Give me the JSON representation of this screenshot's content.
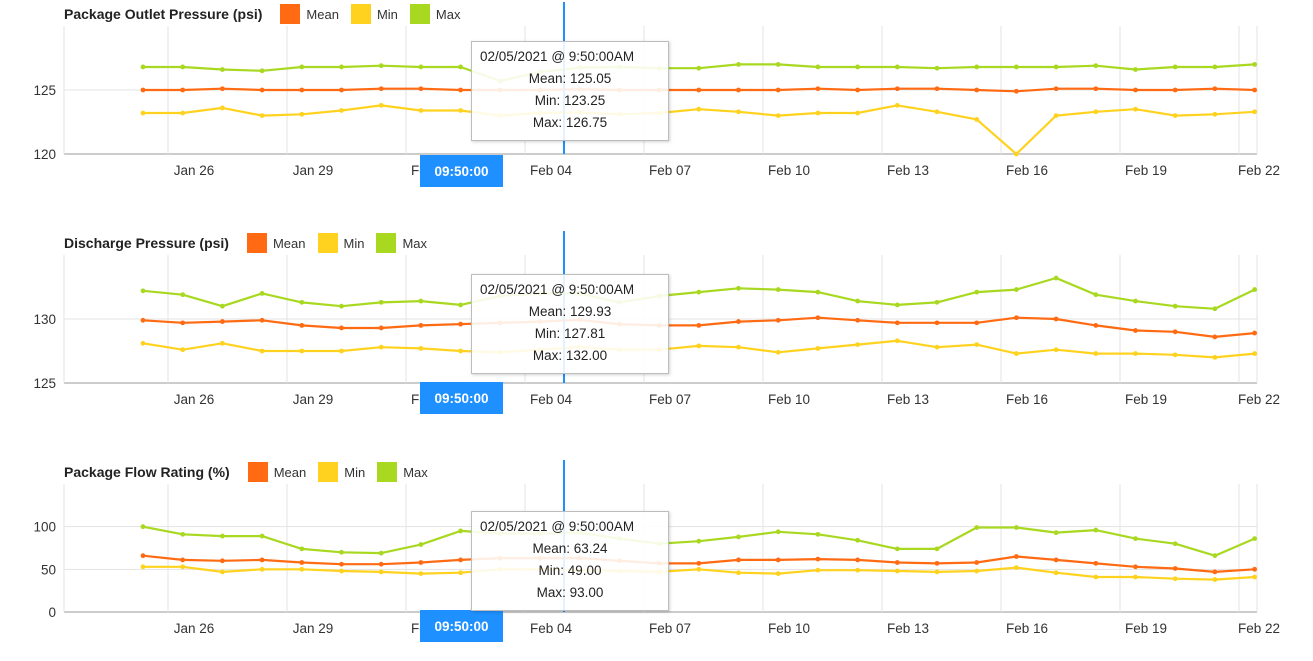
{
  "colors": {
    "mean": "#ff6a13",
    "min": "#ffd21f",
    "max": "#a8d820",
    "cursor": "#1e90ff",
    "grid": "#e3e3e3",
    "axis": "#9a9a9a"
  },
  "legend": {
    "mean": "Mean",
    "min": "Min",
    "max": "Max"
  },
  "x_ticks": [
    "Jan 26",
    "Jan 29",
    "Feb 01",
    "Feb 04",
    "Feb 07",
    "Feb 10",
    "Feb 13",
    "Feb 16",
    "Feb 19",
    "Feb 22"
  ],
  "cursor_time": "09:50:00",
  "chart_data": [
    {
      "type": "line",
      "title": "Package Outlet Pressure (psi)",
      "yticks": [
        "125",
        "120"
      ],
      "ylim": [
        120,
        130
      ],
      "x": [
        "Jan 24",
        "Jan 25",
        "Jan 26",
        "Jan 27",
        "Jan 28",
        "Jan 29",
        "Jan 30",
        "Jan 31",
        "Feb 01",
        "Feb 02",
        "Feb 03",
        "Feb 04",
        "Feb 05",
        "Feb 06",
        "Feb 07",
        "Feb 08",
        "Feb 09",
        "Feb 10",
        "Feb 11",
        "Feb 12",
        "Feb 13",
        "Feb 14",
        "Feb 15",
        "Feb 16",
        "Feb 17",
        "Feb 18",
        "Feb 19",
        "Feb 20",
        "Feb 21"
      ],
      "series": [
        {
          "name": "Mean",
          "values": [
            125.0,
            125.0,
            125.1,
            125.0,
            125.0,
            125.0,
            125.1,
            125.1,
            125.0,
            125.0,
            125.0,
            125.05,
            125.0,
            125.0,
            125.0,
            125.0,
            125.0,
            125.1,
            125.0,
            125.1,
            125.1,
            125.0,
            124.9,
            125.1,
            125.1,
            125.0,
            125.0,
            125.1,
            125.0
          ]
        },
        {
          "name": "Min",
          "values": [
            123.2,
            123.2,
            123.6,
            123.0,
            123.1,
            123.4,
            123.8,
            123.4,
            123.4,
            123.0,
            123.2,
            123.25,
            123.1,
            123.2,
            123.5,
            123.3,
            123.0,
            123.2,
            123.2,
            123.8,
            123.3,
            122.7,
            120.0,
            123.0,
            123.3,
            123.5,
            123.0,
            123.1,
            123.3
          ]
        },
        {
          "name": "Max",
          "values": [
            126.8,
            126.8,
            126.6,
            126.5,
            126.8,
            126.8,
            126.9,
            126.8,
            126.8,
            125.7,
            126.4,
            126.75,
            126.8,
            126.7,
            126.7,
            127.0,
            127.0,
            126.8,
            126.8,
            126.8,
            126.7,
            126.8,
            126.8,
            126.8,
            126.9,
            126.6,
            126.8,
            126.8,
            127.0
          ]
        }
      ],
      "tooltip": {
        "date": "02/05/2021 @ 9:50:00AM",
        "mean": "Mean: 125.05",
        "min": "Min: 123.25",
        "max": "Max: 126.75"
      }
    },
    {
      "type": "line",
      "title": "Discharge Pressure (psi)",
      "yticks": [
        "130",
        "125"
      ],
      "ylim": [
        125,
        135
      ],
      "x": [
        "Jan 24",
        "Jan 25",
        "Jan 26",
        "Jan 27",
        "Jan 28",
        "Jan 29",
        "Jan 30",
        "Jan 31",
        "Feb 01",
        "Feb 02",
        "Feb 03",
        "Feb 04",
        "Feb 05",
        "Feb 06",
        "Feb 07",
        "Feb 08",
        "Feb 09",
        "Feb 10",
        "Feb 11",
        "Feb 12",
        "Feb 13",
        "Feb 14",
        "Feb 15",
        "Feb 16",
        "Feb 17",
        "Feb 18",
        "Feb 19",
        "Feb 20",
        "Feb 21"
      ],
      "series": [
        {
          "name": "Mean",
          "values": [
            129.9,
            129.7,
            129.8,
            129.9,
            129.5,
            129.3,
            129.3,
            129.5,
            129.6,
            129.7,
            129.8,
            129.93,
            129.6,
            129.5,
            129.5,
            129.8,
            129.9,
            130.1,
            129.9,
            129.7,
            129.7,
            129.7,
            130.1,
            130.0,
            129.5,
            129.1,
            129.0,
            128.6,
            128.9
          ]
        },
        {
          "name": "Min",
          "values": [
            128.1,
            127.6,
            128.1,
            127.5,
            127.5,
            127.5,
            127.8,
            127.7,
            127.5,
            127.4,
            127.6,
            127.81,
            127.6,
            127.6,
            127.9,
            127.8,
            127.4,
            127.7,
            128.0,
            128.3,
            127.8,
            128.0,
            127.3,
            127.6,
            127.3,
            127.3,
            127.2,
            127.0,
            127.3
          ]
        },
        {
          "name": "Max",
          "values": [
            132.2,
            131.9,
            131.0,
            132.0,
            131.3,
            131.0,
            131.3,
            131.4,
            131.1,
            131.8,
            132.0,
            132.0,
            131.3,
            131.8,
            132.1,
            132.4,
            132.3,
            132.1,
            131.4,
            131.1,
            131.3,
            132.1,
            132.3,
            133.2,
            131.9,
            131.4,
            131.0,
            130.8,
            132.3
          ]
        }
      ],
      "tooltip": {
        "date": "02/05/2021 @ 9:50:00AM",
        "mean": "Mean: 129.93",
        "min": "Min: 127.81",
        "max": "Max: 132.00"
      }
    },
    {
      "type": "line",
      "title": "Package Flow Rating (%)",
      "yticks": [
        "100",
        "50",
        "0"
      ],
      "ylim": [
        0,
        150
      ],
      "x": [
        "Jan 24",
        "Jan 25",
        "Jan 26",
        "Jan 27",
        "Jan 28",
        "Jan 29",
        "Jan 30",
        "Jan 31",
        "Feb 01",
        "Feb 02",
        "Feb 03",
        "Feb 04",
        "Feb 05",
        "Feb 06",
        "Feb 07",
        "Feb 08",
        "Feb 09",
        "Feb 10",
        "Feb 11",
        "Feb 12",
        "Feb 13",
        "Feb 14",
        "Feb 15",
        "Feb 16",
        "Feb 17",
        "Feb 18",
        "Feb 19",
        "Feb 20",
        "Feb 21"
      ],
      "series": [
        {
          "name": "Mean",
          "values": [
            66,
            61,
            60,
            61,
            58,
            56,
            56,
            58,
            61,
            63,
            63,
            63.24,
            60,
            57,
            57,
            61,
            61,
            62,
            61,
            58,
            57,
            58,
            65,
            61,
            57,
            53,
            51,
            47,
            50
          ]
        },
        {
          "name": "Min",
          "values": [
            53,
            53,
            47,
            50,
            50,
            48,
            47,
            45,
            46,
            50,
            50,
            49,
            48,
            47,
            50,
            46,
            45,
            49,
            49,
            48,
            47,
            48,
            52,
            46,
            41,
            41,
            39,
            38,
            41
          ]
        },
        {
          "name": "Max",
          "values": [
            100,
            91,
            89,
            89,
            74,
            70,
            69,
            79,
            95,
            92,
            92,
            93,
            86,
            80,
            83,
            88,
            94,
            91,
            84,
            74,
            74,
            99,
            99,
            93,
            96,
            86,
            80,
            66,
            86
          ]
        }
      ],
      "tooltip": {
        "date": "02/05/2021 @ 9:50:00AM",
        "mean": "Mean: 63.24",
        "min": "Min: 49.00",
        "max": "Max: 93.00"
      }
    }
  ]
}
